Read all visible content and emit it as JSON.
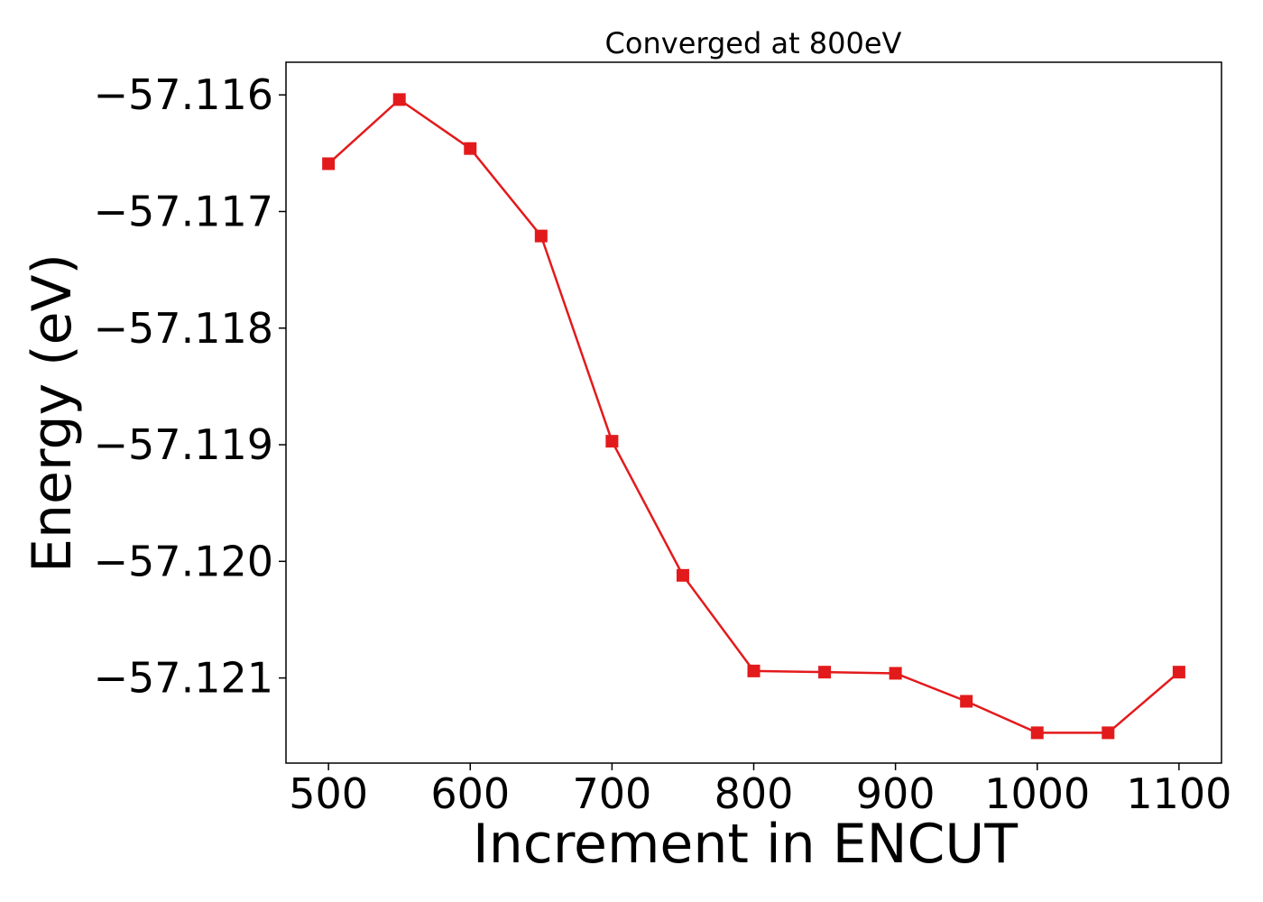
{
  "chart_data": {
    "type": "line",
    "title": "Converged at 800eV",
    "xlabel": "Increment in ENCUT",
    "ylabel": "Energy (eV)",
    "xlim": [
      470,
      1130
    ],
    "ylim": [
      -57.12173,
      -57.11572
    ],
    "x_ticks": [
      500,
      600,
      700,
      800,
      900,
      1000,
      1100
    ],
    "x_tick_labels": [
      "500",
      "600",
      "700",
      "800",
      "900",
      "1000",
      "1100"
    ],
    "y_ticks": [
      -57.116,
      -57.117,
      -57.118,
      -57.119,
      -57.12,
      -57.121
    ],
    "y_tick_labels": [
      "−57.116",
      "−57.117",
      "−57.118",
      "−57.119",
      "−57.120",
      "−57.121"
    ],
    "grid": false,
    "series": [
      {
        "color": "#e31a1c",
        "marker": "square",
        "x": [
          500,
          550,
          600,
          650,
          700,
          750,
          800,
          850,
          900,
          950,
          1000,
          1050,
          1100
        ],
        "y": [
          -57.11659,
          -57.11604,
          -57.11646,
          -57.11721,
          -57.11897,
          -57.12012,
          -57.12094,
          -57.12095,
          -57.12096,
          -57.1212,
          -57.12147,
          -57.12147,
          -57.12095
        ]
      }
    ]
  }
}
